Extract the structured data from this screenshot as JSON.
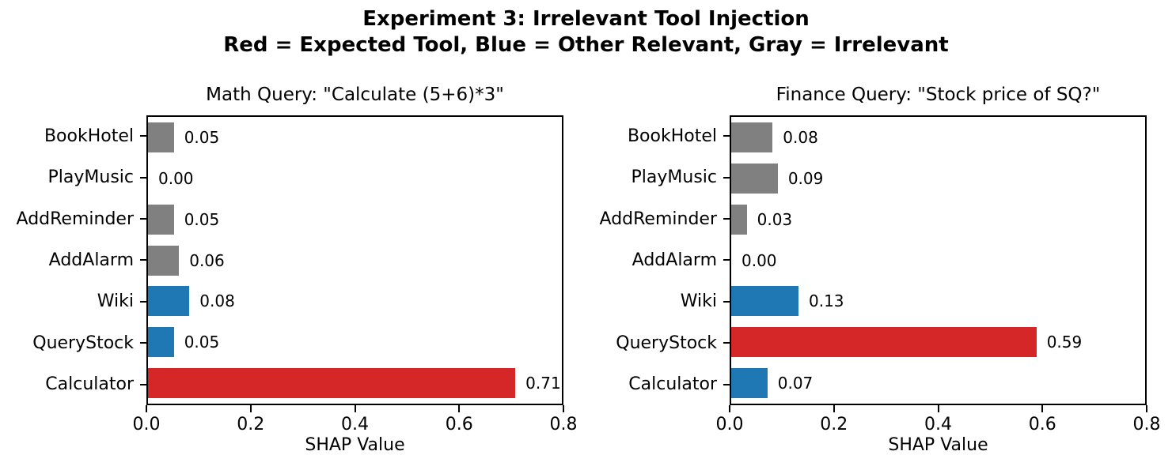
{
  "suptitle_line1": "Experiment 3: Irrelevant Tool Injection",
  "suptitle_line2": "Red = Expected Tool, Blue = Other Relevant, Gray = Irrelevant",
  "legend_colors": {
    "expected_tool": "#d62728",
    "other_relevant": "#1f77b4",
    "irrelevant": "#808080"
  },
  "chart_data": [
    {
      "type": "bar",
      "orientation": "horizontal",
      "title": "Math Query: \"Calculate (5+6)*3\"",
      "categories": [
        "BookHotel",
        "PlayMusic",
        "AddReminder",
        "AddAlarm",
        "Wiki",
        "QueryStock",
        "Calculator"
      ],
      "values": [
        0.05,
        0.0,
        0.05,
        0.06,
        0.08,
        0.05,
        0.71
      ],
      "value_labels": [
        "0.05",
        "0.00",
        "0.05",
        "0.06",
        "0.08",
        "0.05",
        "0.71"
      ],
      "bar_colors": [
        "#808080",
        "#808080",
        "#808080",
        "#808080",
        "#1f77b4",
        "#1f77b4",
        "#d62728"
      ],
      "xlabel": "SHAP Value",
      "xlim": [
        0,
        0.8
      ],
      "xticks": [
        "0.0",
        "0.2",
        "0.4",
        "0.6",
        "0.8"
      ],
      "grid": false
    },
    {
      "type": "bar",
      "orientation": "horizontal",
      "title": "Finance Query: \"Stock price of SQ?\"",
      "categories": [
        "BookHotel",
        "PlayMusic",
        "AddReminder",
        "AddAlarm",
        "Wiki",
        "QueryStock",
        "Calculator"
      ],
      "values": [
        0.08,
        0.09,
        0.03,
        0.0,
        0.13,
        0.59,
        0.07
      ],
      "value_labels": [
        "0.08",
        "0.09",
        "0.03",
        "0.00",
        "0.13",
        "0.59",
        "0.07"
      ],
      "bar_colors": [
        "#808080",
        "#808080",
        "#808080",
        "#808080",
        "#1f77b4",
        "#d62728",
        "#1f77b4"
      ],
      "xlabel": "SHAP Value",
      "xlim": [
        0,
        0.8
      ],
      "xticks": [
        "0.0",
        "0.2",
        "0.4",
        "0.6",
        "0.8"
      ],
      "grid": false
    }
  ]
}
